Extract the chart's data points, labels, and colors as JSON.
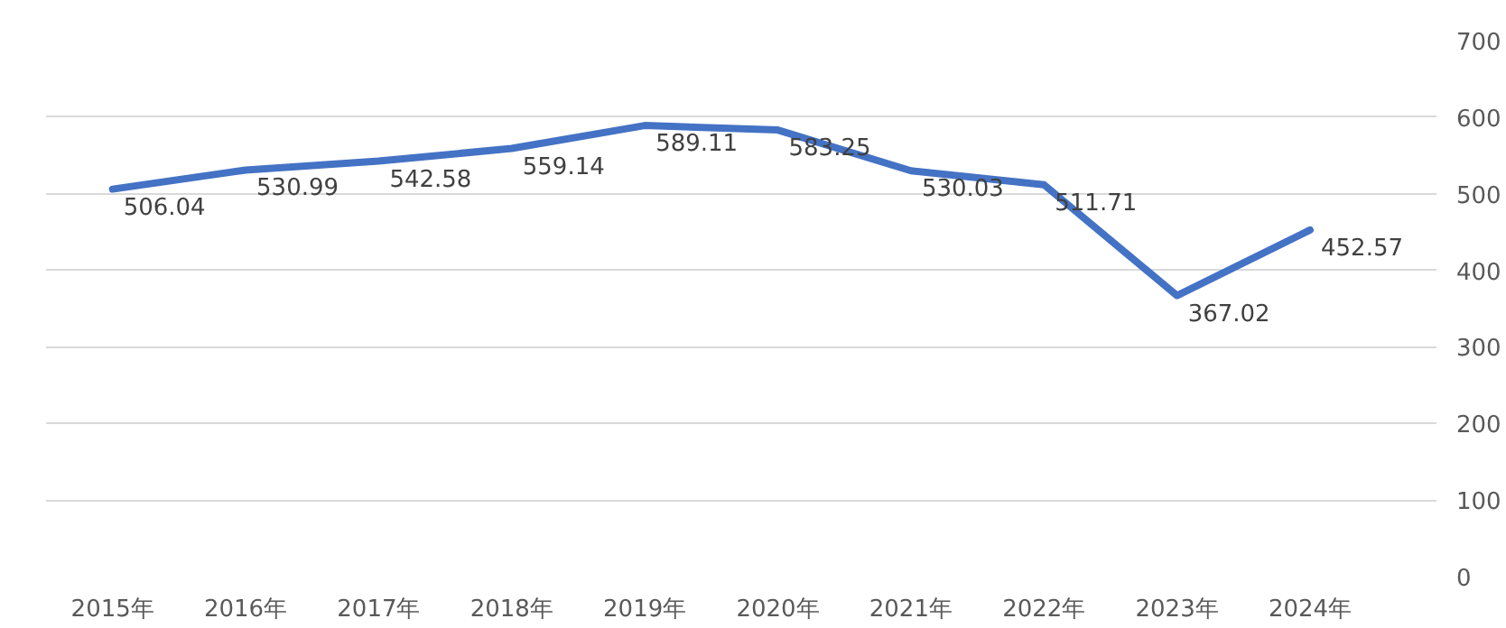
{
  "chart_data": {
    "type": "line",
    "categories": [
      "2015年",
      "2016年",
      "2017年",
      "2018年",
      "2019年",
      "2020年",
      "2021年",
      "2022年",
      "2023年",
      "2024年"
    ],
    "series": [
      {
        "color": "#4472c4",
        "values": [
          506.04,
          530.99,
          542.58,
          559.14,
          589.11,
          583.25,
          530.03,
          511.71,
          367.02,
          452.57
        ]
      }
    ],
    "ylim": [
      0,
      700
    ],
    "yticks": [
      0,
      100,
      200,
      300,
      400,
      500,
      600,
      700
    ],
    "grid": "y",
    "data_labels": true,
    "marker": "none",
    "line_style": "solid"
  }
}
